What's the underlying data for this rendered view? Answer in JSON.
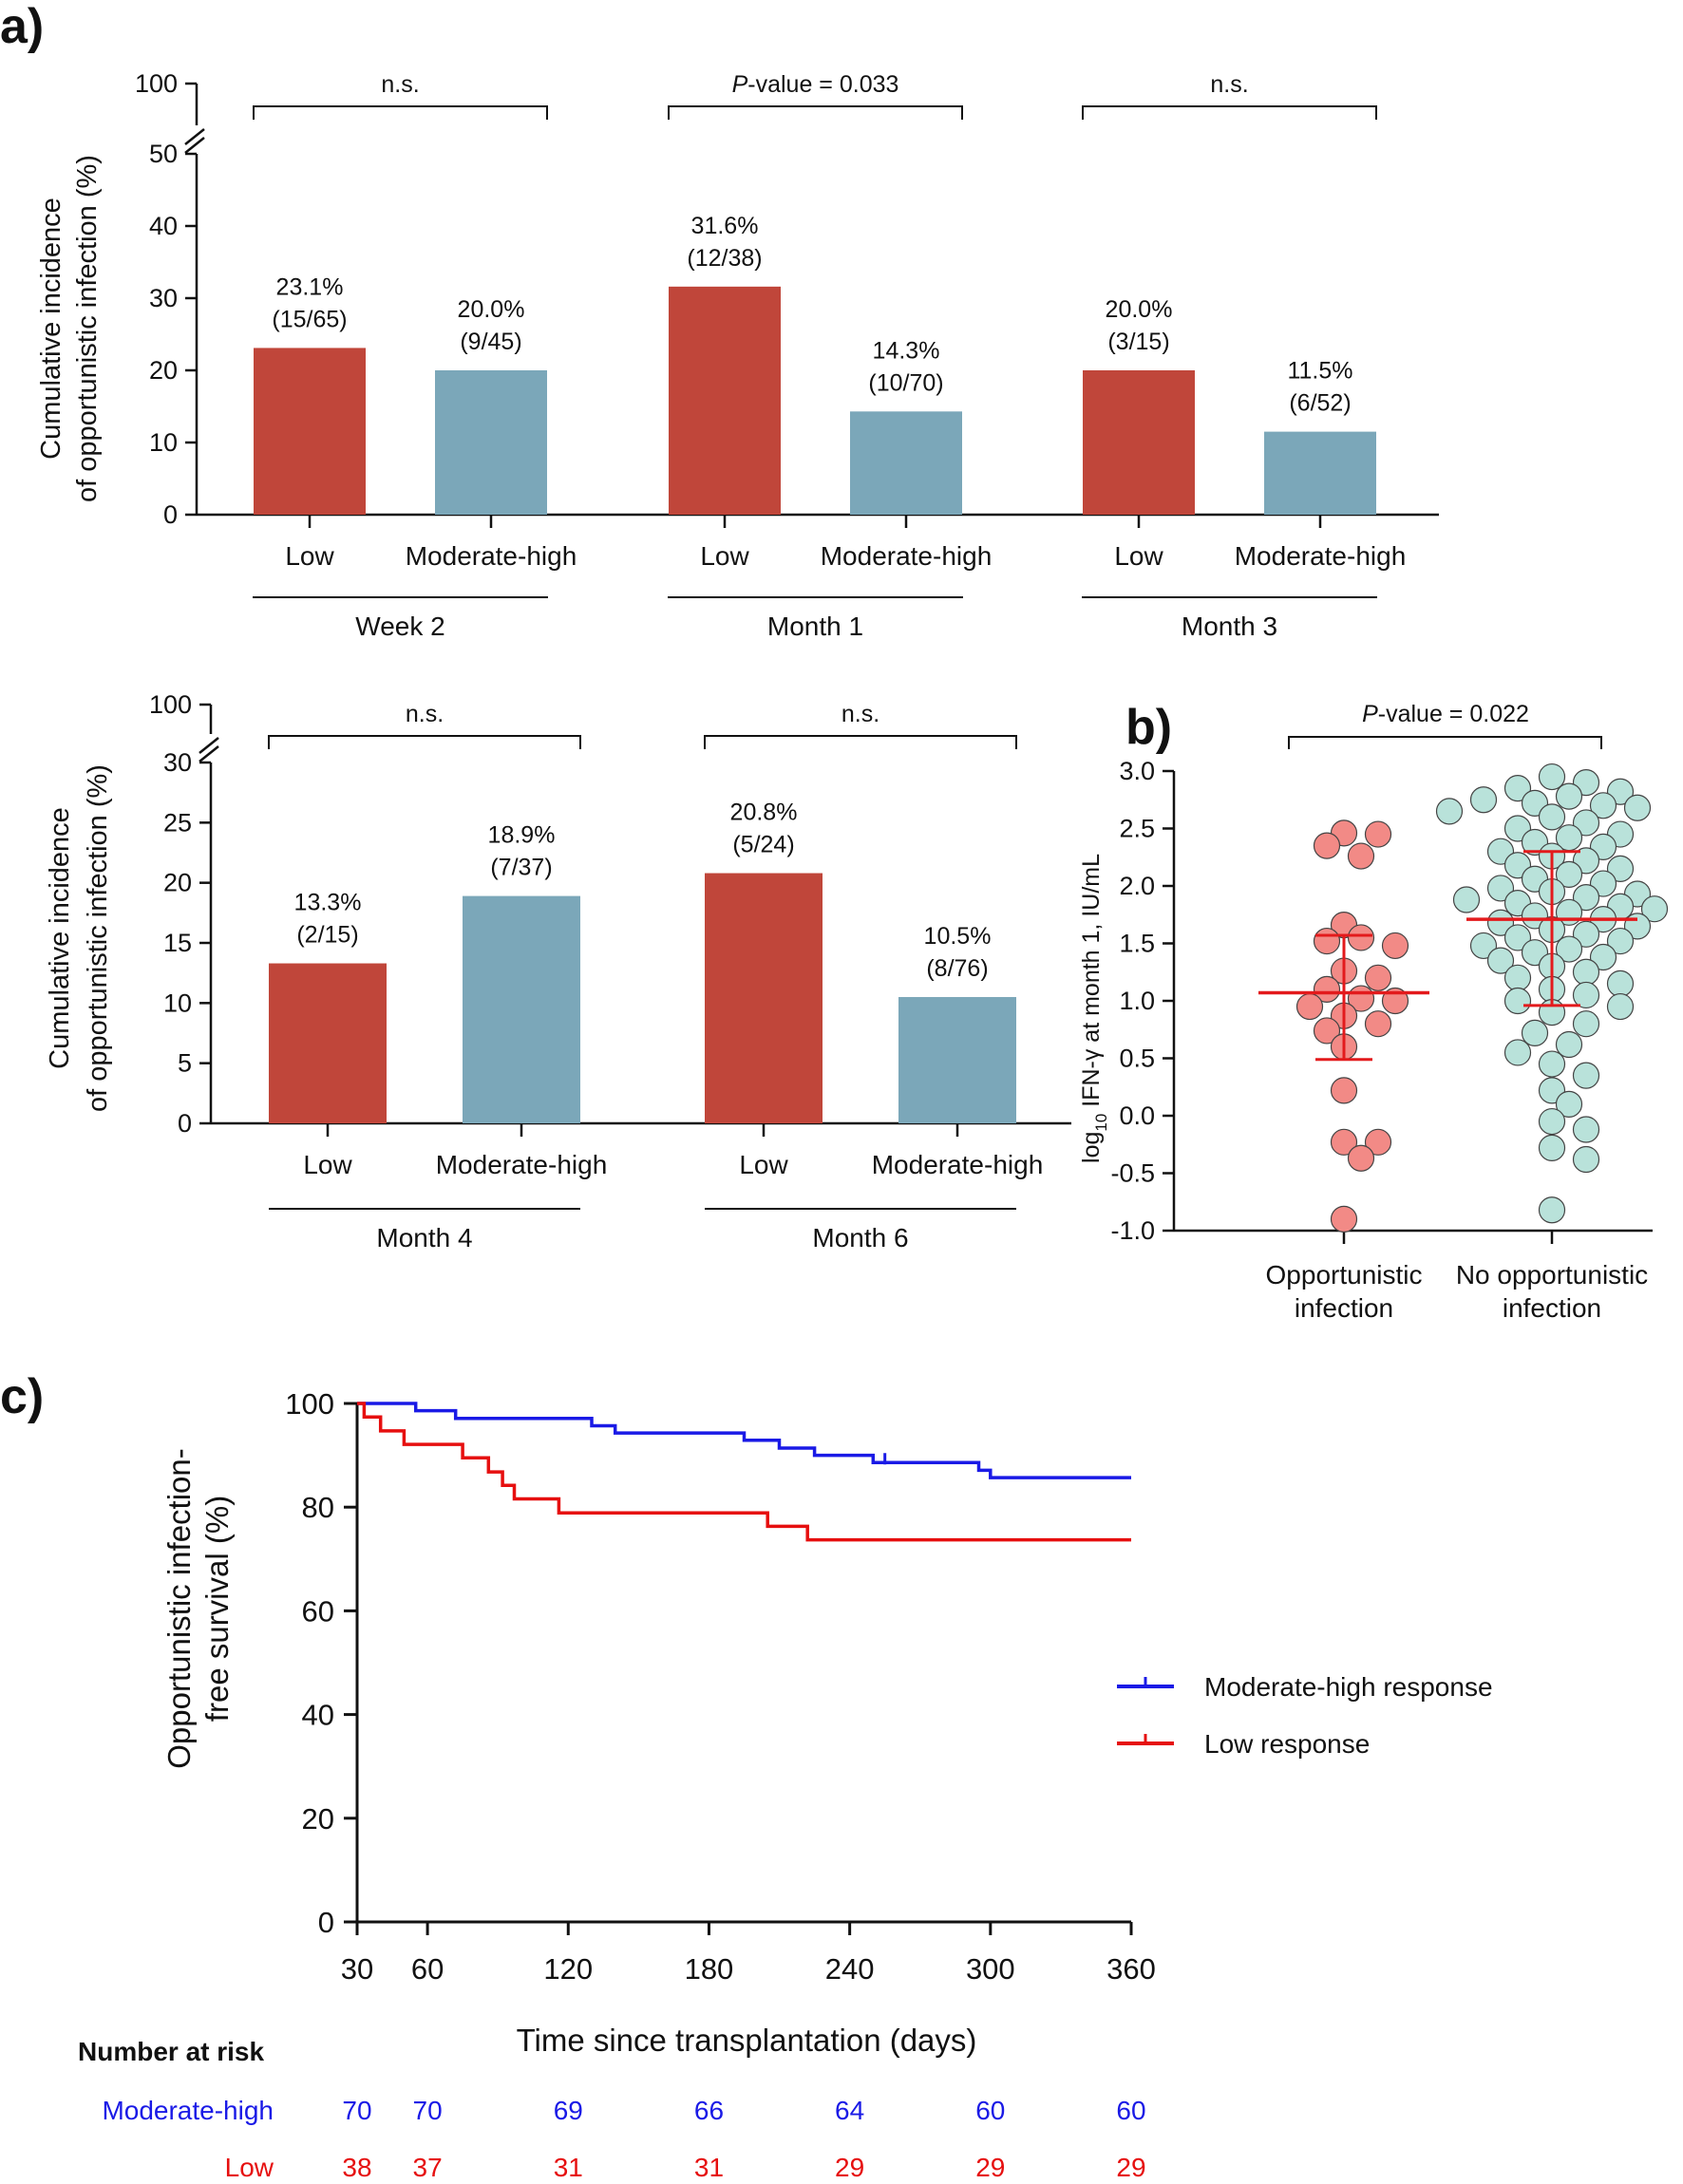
{
  "colors": {
    "low_bar": "#C0463A",
    "high_bar": "#7BA7B9",
    "low_dot": "#F28A86",
    "high_dot": "#B9E2DA",
    "dot_stroke": "#444444",
    "mean_line": "#E31A1C",
    "km_high": "#1A1AE6",
    "km_low": "#E60F0F",
    "axis": "#111111"
  },
  "chart_data": [
    {
      "id": "panel-a-top",
      "panel": "a)",
      "type": "bar",
      "ylabel_line1": "Cumulative incidence",
      "ylabel_line2": "of opportunistic infection (%)",
      "yticks_lower": [
        "0",
        "10",
        "20",
        "30",
        "40",
        "50"
      ],
      "ytick_break_top": "100",
      "ylim": [
        0,
        50
      ],
      "groups": [
        {
          "name": "Week 2",
          "comparison": "n.s.",
          "pvalue_label": "",
          "bars": [
            {
              "label": "Low",
              "value": 23.1,
              "pct": "23.1%",
              "frac": "(15/65)",
              "level": "low"
            },
            {
              "label": "Moderate-high",
              "value": 20.0,
              "pct": "20.0%",
              "frac": "(9/45)",
              "level": "high"
            }
          ]
        },
        {
          "name": "Month 1",
          "comparison": "",
          "pvalue_label": "-value = 0.033",
          "bars": [
            {
              "label": "Low",
              "value": 31.6,
              "pct": "31.6%",
              "frac": "(12/38)",
              "level": "low"
            },
            {
              "label": "Moderate-high",
              "value": 14.3,
              "pct": "14.3%",
              "frac": "(10/70)",
              "level": "high"
            }
          ]
        },
        {
          "name": "Month 3",
          "comparison": "n.s.",
          "pvalue_label": "",
          "bars": [
            {
              "label": "Low",
              "value": 20.0,
              "pct": "20.0%",
              "frac": "(3/15)",
              "level": "low"
            },
            {
              "label": "Moderate-high",
              "value": 11.5,
              "pct": "11.5%",
              "frac": "(6/52)",
              "level": "high"
            }
          ]
        }
      ]
    },
    {
      "id": "panel-a-bottom",
      "type": "bar",
      "ylabel_line1": "Cumulative incidence",
      "ylabel_line2": "of opportunistic infection (%)",
      "yticks_lower": [
        "0",
        "5",
        "10",
        "15",
        "20",
        "25",
        "30"
      ],
      "ytick_break_top": "100",
      "ylim": [
        0,
        30
      ],
      "groups": [
        {
          "name": "Month 4",
          "comparison": "n.s.",
          "pvalue_label": "",
          "bars": [
            {
              "label": "Low",
              "value": 13.3,
              "pct": "13.3%",
              "frac": "(2/15)",
              "level": "low"
            },
            {
              "label": "Moderate-high",
              "value": 18.9,
              "pct": "18.9%",
              "frac": "(7/37)",
              "level": "high"
            }
          ]
        },
        {
          "name": "Month 6",
          "comparison": "n.s.",
          "pvalue_label": "",
          "bars": [
            {
              "label": "Low",
              "value": 20.8,
              "pct": "20.8%",
              "frac": "(5/24)",
              "level": "low"
            },
            {
              "label": "Moderate-high",
              "value": 10.5,
              "pct": "10.5%",
              "frac": "(8/76)",
              "level": "high"
            }
          ]
        }
      ]
    },
    {
      "id": "panel-b",
      "panel": "b)",
      "type": "scatter",
      "ylabel_prefix": "log",
      "ylabel_sub": "10",
      "ylabel_rest": " IFN-γ at month 1, IU/mL",
      "ylim": [
        -1.0,
        3.0
      ],
      "yticks": [
        "-1.0",
        "-0.5",
        "0.0",
        "0.5",
        "1.0",
        "1.5",
        "2.0",
        "2.5",
        "3.0"
      ],
      "pvalue_label": "-value = 0.022",
      "p_italic": "P",
      "groups": [
        {
          "label_line1": "Opportunistic",
          "label_line2": "infection",
          "mean": 1.07,
          "sd_low": 0.49,
          "sd_high": 1.57,
          "level": "low",
          "values": [
            2.46,
            2.35,
            2.26,
            2.45,
            1.66,
            1.48,
            1.52,
            1.55,
            1.26,
            1.2,
            1.1,
            1.02,
            1.0,
            0.95,
            0.87,
            0.8,
            0.74,
            0.6,
            0.22,
            -0.23,
            -0.37,
            -0.23,
            -0.9
          ]
        },
        {
          "label_line1": "No opportunistic",
          "label_line2": "infection",
          "mean": 1.71,
          "sd_low": 0.96,
          "sd_high": 2.3,
          "level": "high",
          "values": [
            2.95,
            2.9,
            2.85,
            2.82,
            2.78,
            2.75,
            2.72,
            2.7,
            2.68,
            2.65,
            2.6,
            2.55,
            2.5,
            2.45,
            2.42,
            2.38,
            2.34,
            2.3,
            2.26,
            2.22,
            2.18,
            2.15,
            2.1,
            2.06,
            2.02,
            1.98,
            1.95,
            1.93,
            1.9,
            1.88,
            1.85,
            1.82,
            1.8,
            1.77,
            1.74,
            1.71,
            1.68,
            1.65,
            1.62,
            1.58,
            1.55,
            1.52,
            1.48,
            1.45,
            1.42,
            1.38,
            1.35,
            1.3,
            1.25,
            1.2,
            1.15,
            1.1,
            1.05,
            1.0,
            0.95,
            0.9,
            0.8,
            0.72,
            0.62,
            0.55,
            0.45,
            0.35,
            0.22,
            0.1,
            -0.05,
            -0.12,
            -0.28,
            -0.38,
            -0.82
          ]
        }
      ]
    },
    {
      "id": "panel-c",
      "panel": "c)",
      "type": "line",
      "ylabel_line1": "Opportunistic infection-",
      "ylabel_line2": "free survival (%)",
      "xlabel": "Time since transplantation (days)",
      "xlim": [
        30,
        360
      ],
      "ylim": [
        0,
        100
      ],
      "xticks": [
        "30",
        "60",
        "120",
        "180",
        "240",
        "300",
        "360"
      ],
      "yticks": [
        "0",
        "20",
        "40",
        "60",
        "80",
        "100"
      ],
      "series": [
        {
          "name": "Moderate-high response",
          "level": "high",
          "points": [
            [
              30,
              100
            ],
            [
              55,
              100
            ],
            [
              55,
              98.6
            ],
            [
              72,
              98.6
            ],
            [
              72,
              97.1
            ],
            [
              130,
              97.1
            ],
            [
              130,
              95.7
            ],
            [
              140,
              95.7
            ],
            [
              140,
              94.3
            ],
            [
              195,
              94.3
            ],
            [
              195,
              92.9
            ],
            [
              210,
              92.9
            ],
            [
              210,
              91.4
            ],
            [
              225,
              91.4
            ],
            [
              225,
              90.0
            ],
            [
              250,
              90.0
            ],
            [
              250,
              88.6
            ],
            [
              295,
              88.6
            ],
            [
              295,
              87.1
            ],
            [
              300,
              87.1
            ],
            [
              300,
              85.7
            ],
            [
              360,
              85.7
            ]
          ],
          "censor": [
            [
              255,
              88.6
            ]
          ]
        },
        {
          "name": "Low response",
          "level": "low",
          "points": [
            [
              30,
              100
            ],
            [
              33,
              100
            ],
            [
              33,
              97.4
            ],
            [
              40,
              97.4
            ],
            [
              40,
              94.7
            ],
            [
              50,
              94.7
            ],
            [
              50,
              92.1
            ],
            [
              75,
              92.1
            ],
            [
              75,
              89.5
            ],
            [
              86,
              89.5
            ],
            [
              86,
              86.8
            ],
            [
              92,
              86.8
            ],
            [
              92,
              84.2
            ],
            [
              97,
              84.2
            ],
            [
              97,
              81.6
            ],
            [
              116,
              81.6
            ],
            [
              116,
              78.9
            ],
            [
              205,
              78.9
            ],
            [
              205,
              76.3
            ],
            [
              222,
              76.3
            ],
            [
              222,
              73.7
            ],
            [
              360,
              73.7
            ]
          ],
          "censor": []
        }
      ]
    }
  ],
  "risk_table": {
    "title": "Number at risk",
    "rows": [
      {
        "label": "Moderate-high",
        "level": "high",
        "counts": [
          "70",
          "70",
          "69",
          "66",
          "64",
          "60",
          "60"
        ]
      },
      {
        "label": "Low",
        "level": "low",
        "counts": [
          "38",
          "37",
          "31",
          "31",
          "29",
          "29",
          "29"
        ]
      }
    ]
  }
}
